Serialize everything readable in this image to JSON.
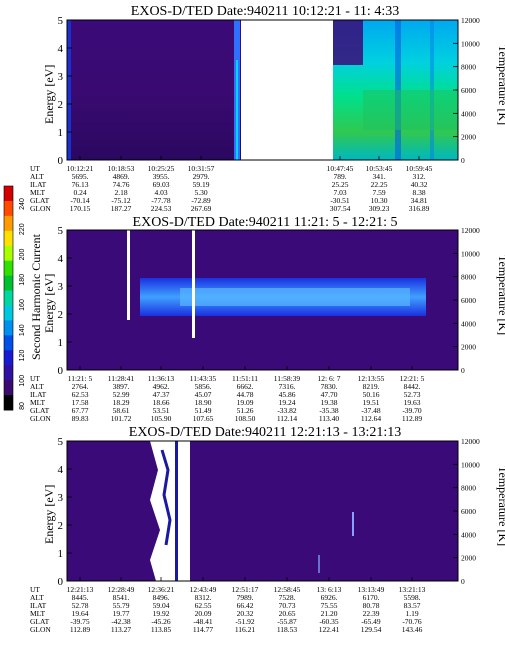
{
  "colorbar": {
    "label": "Second Harmonic Current",
    "ticks": [
      "240",
      "220",
      "200",
      "180",
      "160",
      "140",
      "120",
      "100",
      "80"
    ],
    "colors": [
      "#d40000",
      "#ff4a00",
      "#ff9a00",
      "#ffe000",
      "#a8ff00",
      "#30e000",
      "#00c030",
      "#00d8a0",
      "#00c8e0",
      "#0090f0",
      "#0050e8",
      "#1a1ad0",
      "#3010a0",
      "#3a0a70",
      "#000000"
    ]
  },
  "panels": [
    {
      "title": "EXOS-D/TED  Date:940211  10:12:21 - 11: 4:33",
      "ylabel_left": "Energy [eV]",
      "ylabel_right": "Temperature [K]",
      "left_ticks": [
        "0",
        "1",
        "2",
        "3",
        "4",
        "5"
      ],
      "right_ticks": [
        "0",
        "2000",
        "4000",
        "6000",
        "8000",
        "10000",
        "12000"
      ],
      "row_labels": [
        "UT",
        "ALT",
        "ILAT",
        "MLT",
        "GLAT",
        "GLON"
      ],
      "columns": [
        [
          "10:12:21",
          "5695.",
          "76.13",
          "0.24",
          "-70.14",
          "170.15"
        ],
        [
          "10:18:53",
          "4869.",
          "74.76",
          "2.18",
          "-75.12",
          "187.27"
        ],
        [
          "10:25:25",
          "3955.",
          "69.03",
          "4.03",
          "-77.78",
          "224.53"
        ],
        [
          "10:31:57",
          "2979.",
          "59.19",
          "5.30",
          "-72.89",
          "267.69"
        ],
        [
          "",
          "",
          "",
          "",
          "",
          ""
        ],
        [
          "10:47:45",
          "789.",
          "25.25",
          "7.03",
          "-30.51",
          "307.54"
        ],
        [
          "10:53:45",
          "341.",
          "22.25",
          "7.59",
          "10.30",
          "309.23"
        ],
        [
          "10:59:45",
          "312.",
          "40.32",
          "8.38",
          "34.81",
          "316.89"
        ]
      ]
    },
    {
      "title": "EXOS-D/TED   Date:940211  11:21: 5 - 12:21: 5",
      "ylabel_left": "Energy [eV]",
      "ylabel_right": "Temperature [K]",
      "left_ticks": [
        "0",
        "1",
        "2",
        "3",
        "4",
        "5"
      ],
      "right_ticks": [
        "0",
        "2000",
        "4000",
        "6000",
        "8000",
        "10000",
        "12000"
      ],
      "row_labels": [
        "UT",
        "ALT",
        "ILAT",
        "MLT",
        "GLAT",
        "GLON"
      ],
      "columns": [
        [
          "11:21: 5",
          "2764.",
          "62.53",
          "17.58",
          "67.77",
          "89.83"
        ],
        [
          "11:28:41",
          "3897.",
          "52.99",
          "18.29",
          "58.61",
          "101.72"
        ],
        [
          "11:36:13",
          "4962.",
          "47.37",
          "18.66",
          "53.51",
          "105.90"
        ],
        [
          "11:43:35",
          "5856.",
          "45.07",
          "18.90",
          "51.49",
          "107.65"
        ],
        [
          "11:51:11",
          "6662.",
          "44.78",
          "19.09",
          "51.26",
          "108.50"
        ],
        [
          "11:58:39",
          "7316.",
          "45.86",
          "19.24",
          "-33.82",
          "112.14"
        ],
        [
          "12: 6: 7",
          "7830.",
          "47.70",
          "19.38",
          "-35.38",
          "113.40"
        ],
        [
          "12:13:55",
          "8219.",
          "50.16",
          "19.51",
          "-37.48",
          "112.64"
        ],
        [
          "12:21: 5",
          "8442.",
          "52.73",
          "19.63",
          "-39.70",
          "112.89"
        ]
      ]
    },
    {
      "title": "EXOS-D/TED   Date:940211  12:21:13 - 13:21:13",
      "ylabel_left": "Energy [eV]",
      "ylabel_right": "Temperature [K]",
      "left_ticks": [
        "0",
        "1",
        "2",
        "3",
        "4",
        "5"
      ],
      "right_ticks": [
        "0",
        "2000",
        "4000",
        "6000",
        "8000",
        "10000",
        "12000"
      ],
      "row_labels": [
        "UT",
        "ALT",
        "ILAT",
        "MLT",
        "GLAT",
        "GLON"
      ],
      "columns": [
        [
          "12:21:13",
          "8445.",
          "52.78",
          "19.64",
          "-39.75",
          "112.89"
        ],
        [
          "12:28:49",
          "8541.",
          "55.79",
          "19.77",
          "-42.38",
          "113.27"
        ],
        [
          "12:36:21",
          "8496.",
          "59.04",
          "19.92",
          "-45.26",
          "113.85"
        ],
        [
          "12:43:49",
          "8312.",
          "62.55",
          "20.09",
          "-48.41",
          "114.77"
        ],
        [
          "12:51:17",
          "7989.",
          "66.42",
          "20.32",
          "-51.92",
          "116.21"
        ],
        [
          "12:58:45",
          "7528.",
          "70.73",
          "20.65",
          "-55.87",
          "118.53"
        ],
        [
          "13: 6:13",
          "6926.",
          "75.55",
          "21.20",
          "-60.35",
          "122.41"
        ],
        [
          "13:13:49",
          "6170.",
          "80.78",
          "22.39",
          "-65.49",
          "129.54"
        ],
        [
          "13:21:13",
          "5598.",
          "83.57",
          "1.19",
          "-70.76",
          "143.46"
        ]
      ]
    }
  ],
  "chart_data": [
    {
      "type": "heatmap",
      "title": "EXOS-D/TED  Date:940211  10:12:21 - 11: 4:33",
      "ylabel": "Energy [eV]",
      "y2label": "Temperature [K]",
      "ylim": [
        0,
        5
      ],
      "y2lim": [
        0,
        12000
      ],
      "x": [
        "10:12:21",
        "10:18:53",
        "10:25:25",
        "10:31:57",
        "10:47:45",
        "10:53:45",
        "10:59:45"
      ]
    },
    {
      "type": "heatmap",
      "title": "EXOS-D/TED   Date:940211  11:21: 5 - 12:21: 5",
      "ylabel": "Energy [eV]",
      "y2label": "Temperature [K]",
      "ylim": [
        0,
        5
      ],
      "y2lim": [
        0,
        12000
      ],
      "x": [
        "11:21: 5",
        "11:28:41",
        "11:36:13",
        "11:43:35",
        "11:51:11",
        "11:58:39",
        "12: 6: 7",
        "12:13:55",
        "12:21: 5"
      ]
    },
    {
      "type": "heatmap",
      "title": "EXOS-D/TED   Date:940211  12:21:13 - 13:21:13",
      "ylabel": "Energy [eV]",
      "y2label": "Temperature [K]",
      "ylim": [
        0,
        5
      ],
      "y2lim": [
        0,
        12000
      ],
      "x": [
        "12:21:13",
        "12:28:49",
        "12:36:21",
        "12:43:49",
        "12:51:17",
        "12:58:45",
        "13: 6:13",
        "13:13:49",
        "13:21:13"
      ]
    }
  ]
}
